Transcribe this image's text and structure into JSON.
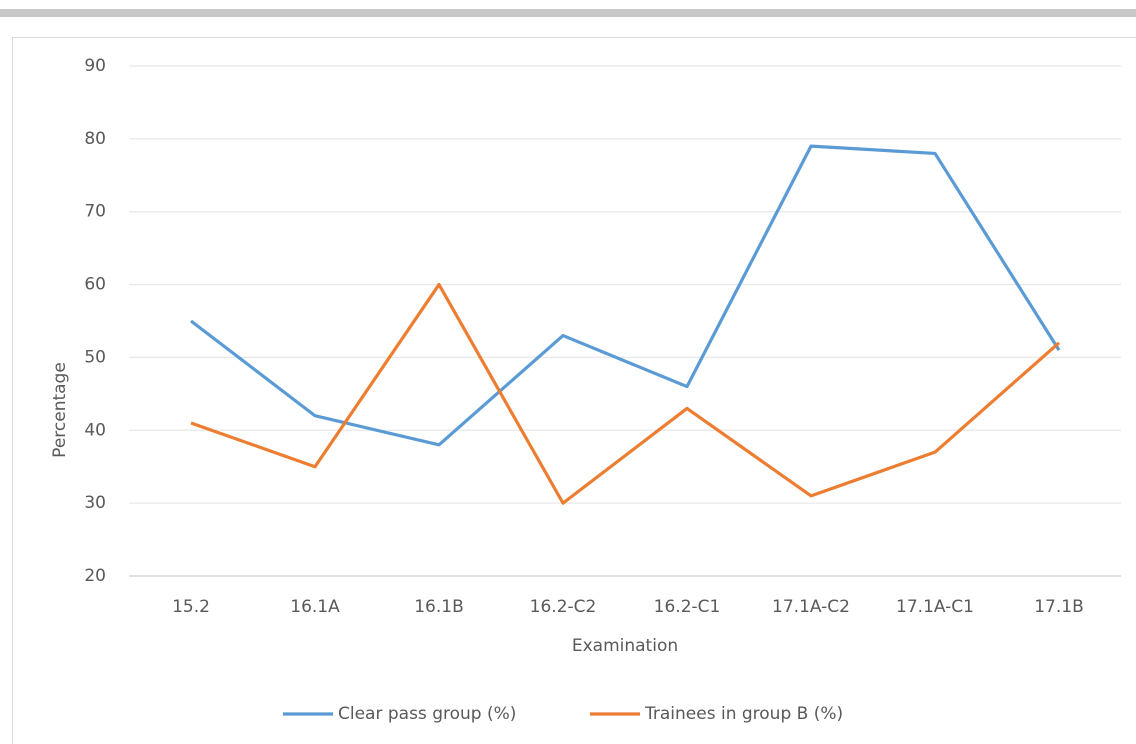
{
  "chart_data": {
    "type": "line",
    "x_label": "Examination",
    "y_label": "Percentage",
    "categories": [
      "15.2",
      "16.1A",
      "16.1B",
      "16.2-C2",
      "16.2-C1",
      "17.1A-C2",
      "17.1A-C1",
      "17.1B"
    ],
    "series": [
      {
        "name": "Clear pass group (%)",
        "color": "#5b9bd5",
        "values": [
          55,
          42,
          38,
          53,
          46,
          79,
          78,
          51
        ]
      },
      {
        "name": "Trainees in group B (%)",
        "color": "#ed7d31",
        "values": [
          41,
          35,
          60,
          30,
          43,
          31,
          37,
          52
        ]
      }
    ],
    "ylim": [
      20,
      90
    ],
    "yticks": [
      20,
      30,
      40,
      50,
      60,
      70,
      80,
      90
    ],
    "grid": true,
    "legend": "bottom"
  }
}
